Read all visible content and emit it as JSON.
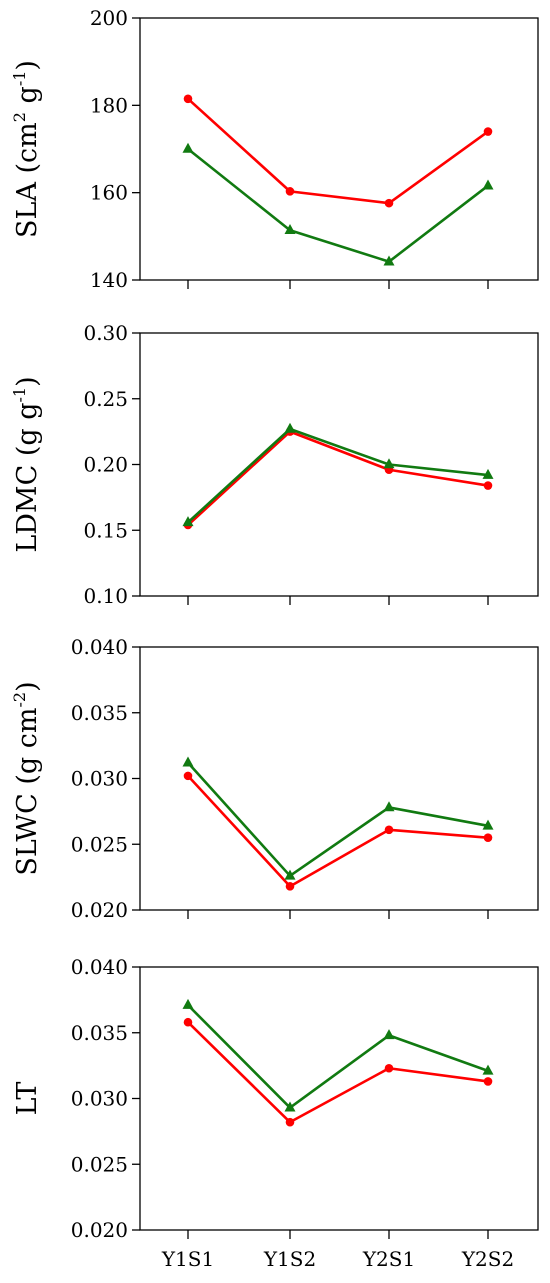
{
  "chart_data": [
    {
      "type": "line",
      "ylabel": "SLA (cm2 g-1)",
      "ylabel_parts": [
        {
          "text": "SLA (cm",
          "sup": false
        },
        {
          "text": "2",
          "sup": true
        },
        {
          "text": " g",
          "sup": false
        },
        {
          "text": "-1",
          "sup": true
        },
        {
          "text": ")",
          "sup": false
        }
      ],
      "ylim": [
        140,
        200
      ],
      "yticks": [
        "140",
        "160",
        "180",
        "200"
      ],
      "categories": [
        "Y1S1",
        "Y1S2",
        "Y2S1",
        "Y2S2"
      ],
      "show_xticklabels": false,
      "series": [
        {
          "color": "#ff0000",
          "marker": "circle",
          "values": [
            181.5,
            160.3,
            157.6,
            174.0
          ]
        },
        {
          "color": "#117a11",
          "marker": "triangle",
          "values": [
            170.0,
            151.4,
            144.2,
            161.6
          ]
        }
      ]
    },
    {
      "type": "line",
      "ylabel": "LDMC (g g-1)",
      "ylabel_parts": [
        {
          "text": "LDMC (g g",
          "sup": false
        },
        {
          "text": "-1",
          "sup": true
        },
        {
          "text": ")",
          "sup": false
        }
      ],
      "ylim": [
        0.1,
        0.3
      ],
      "yticks": [
        "0.10",
        "0.15",
        "0.20",
        "0.25",
        "0.30"
      ],
      "categories": [
        "Y1S1",
        "Y1S2",
        "Y2S1",
        "Y2S2"
      ],
      "show_xticklabels": false,
      "series": [
        {
          "color": "#ff0000",
          "marker": "circle",
          "values": [
            0.154,
            0.225,
            0.196,
            0.184
          ]
        },
        {
          "color": "#117a11",
          "marker": "triangle",
          "values": [
            0.156,
            0.227,
            0.2,
            0.192
          ]
        }
      ]
    },
    {
      "type": "line",
      "ylabel": "SLWC (g cm-2)",
      "ylabel_parts": [
        {
          "text": "SLWC (g cm",
          "sup": false
        },
        {
          "text": "-2",
          "sup": true
        },
        {
          "text": ")",
          "sup": false
        }
      ],
      "ylim": [
        0.02,
        0.04
      ],
      "yticks": [
        "0.020",
        "0.025",
        "0.030",
        "0.035",
        "0.040"
      ],
      "categories": [
        "Y1S1",
        "Y1S2",
        "Y2S1",
        "Y2S2"
      ],
      "show_xticklabels": false,
      "series": [
        {
          "color": "#ff0000",
          "marker": "circle",
          "values": [
            0.0302,
            0.0218,
            0.0261,
            0.0255
          ]
        },
        {
          "color": "#117a11",
          "marker": "triangle",
          "values": [
            0.0312,
            0.0226,
            0.0278,
            0.0264
          ]
        }
      ]
    },
    {
      "type": "line",
      "ylabel": "LT",
      "ylabel_parts": [
        {
          "text": "LT",
          "sup": false
        }
      ],
      "ylim": [
        0.02,
        0.04
      ],
      "yticks": [
        "0.020",
        "0.025",
        "0.030",
        "0.035",
        "0.040"
      ],
      "categories": [
        "Y1S1",
        "Y1S2",
        "Y2S1",
        "Y2S2"
      ],
      "show_xticklabels": true,
      "series": [
        {
          "color": "#ff0000",
          "marker": "circle",
          "values": [
            0.0358,
            0.0282,
            0.0323,
            0.0313
          ]
        },
        {
          "color": "#117a11",
          "marker": "triangle",
          "values": [
            0.0371,
            0.0293,
            0.0348,
            0.0321
          ]
        }
      ]
    }
  ]
}
